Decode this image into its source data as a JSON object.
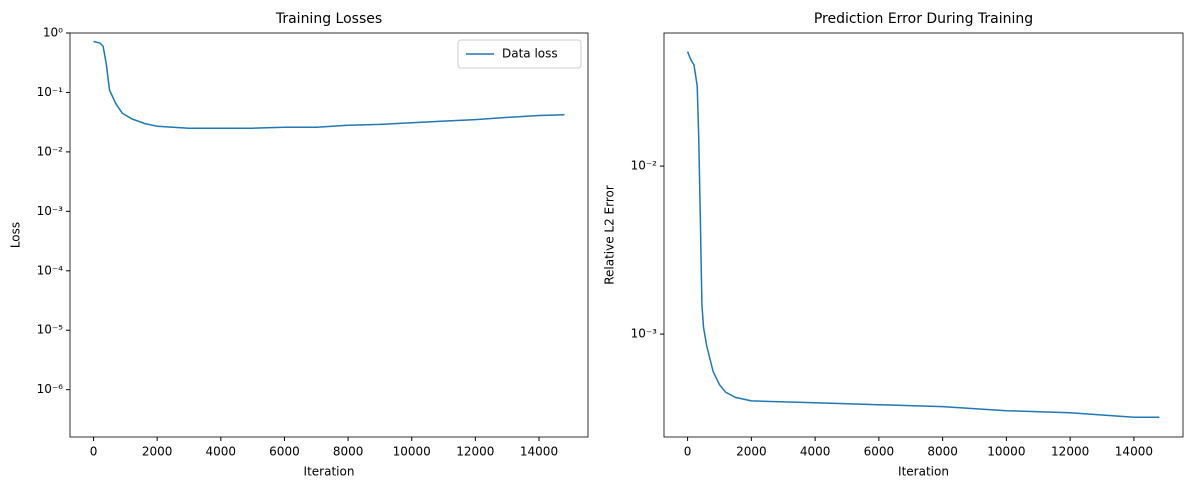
{
  "chart_data": [
    {
      "type": "line",
      "title": "Training Losses",
      "xlabel": "Iteration",
      "ylabel": "Loss",
      "x": [
        0,
        200,
        300,
        400,
        500,
        700,
        900,
        1200,
        1600,
        2000,
        3000,
        4000,
        5000,
        6000,
        7000,
        8000,
        9000,
        10000,
        11000,
        12000,
        13000,
        14000,
        14800
      ],
      "series": [
        {
          "name": "Data loss",
          "color": "#1f77b4",
          "values": [
            0.72,
            0.68,
            0.6,
            0.3,
            0.11,
            0.065,
            0.045,
            0.036,
            0.03,
            0.027,
            0.025,
            0.025,
            0.025,
            0.026,
            0.026,
            0.028,
            0.029,
            0.031,
            0.033,
            0.035,
            0.038,
            0.041,
            0.042
          ]
        }
      ],
      "xlim": [
        -740,
        15540
      ],
      "xticks": [
        0,
        2000,
        4000,
        6000,
        8000,
        10000,
        12000,
        14000
      ],
      "ylim": [
        1.6e-07,
        1
      ],
      "yscale": "log",
      "yticks": [
        {
          "value": 1e-06,
          "label": "10⁻⁶"
        },
        {
          "value": 1e-05,
          "label": "10⁻⁵"
        },
        {
          "value": 0.0001,
          "label": "10⁻⁴"
        },
        {
          "value": 0.001,
          "label": "10⁻³"
        },
        {
          "value": 0.01,
          "label": "10⁻²"
        },
        {
          "value": 0.1,
          "label": "10⁻¹"
        },
        {
          "value": 1,
          "label": "10⁰"
        }
      ],
      "legend": "upper right"
    },
    {
      "type": "line",
      "title": "Prediction Error During Training",
      "xlabel": "Iteration",
      "ylabel": "Relative L2 Error",
      "x": [
        0,
        100,
        200,
        300,
        350,
        400,
        450,
        500,
        600,
        800,
        1000,
        1200,
        1500,
        2000,
        4000,
        6000,
        8000,
        10000,
        12000,
        14000,
        14800
      ],
      "series": [
        {
          "color": "#1f77b4",
          "values": [
            0.048,
            0.043,
            0.04,
            0.03,
            0.015,
            0.005,
            0.0015,
            0.0011,
            0.00085,
            0.0006,
            0.0005,
            0.00045,
            0.00042,
            0.0004,
            0.00039,
            0.00038,
            0.00037,
            0.00035,
            0.00034,
            0.00032,
            0.00032
          ]
        }
      ],
      "xlim": [
        -740,
        15540
      ],
      "xticks": [
        0,
        2000,
        4000,
        6000,
        8000,
        10000,
        12000,
        14000
      ],
      "ylim": [
        0.000244,
        0.062
      ],
      "yscale": "log",
      "yticks": [
        {
          "value": 0.001,
          "label": "10⁻³"
        },
        {
          "value": 0.01,
          "label": "10⁻²"
        }
      ]
    }
  ]
}
